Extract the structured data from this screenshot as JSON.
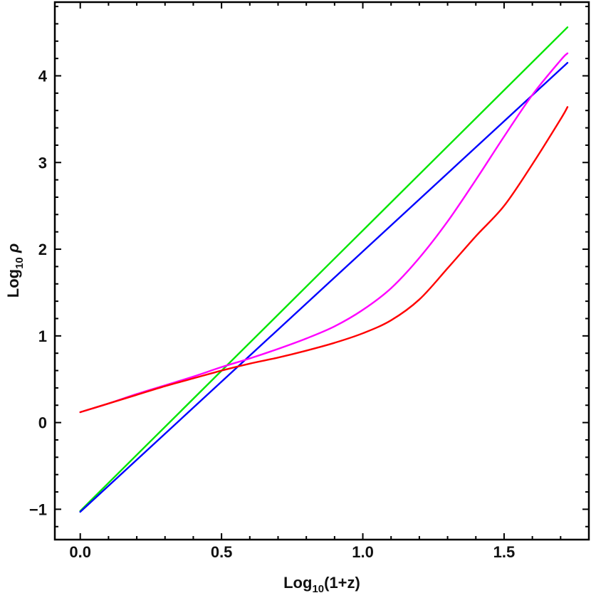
{
  "chart_data": {
    "type": "line",
    "xlabel": {
      "prefix": "Log",
      "sub": "10",
      "suffix": "(1+z)"
    },
    "ylabel": {
      "prefix": "Log",
      "sub": "10",
      "suffix": " ρ"
    },
    "xlim": [
      -0.09,
      1.8
    ],
    "ylim": [
      -1.35,
      4.85
    ],
    "x_ticks": [
      0.0,
      0.5,
      1.0,
      1.5
    ],
    "x_tick_labels": [
      "0.0",
      "0.5",
      "1.0",
      "1.5"
    ],
    "y_ticks": [
      -1,
      0,
      1,
      2,
      3,
      4
    ],
    "y_tick_labels": [
      "-1",
      "0",
      "1",
      "2",
      "3",
      "4"
    ],
    "x_minor_step": 0.1,
    "y_minor_step": 0.2,
    "grid": false,
    "series": [
      {
        "color": "#00e600",
        "x": [
          0.0,
          1.7243
        ],
        "y": [
          -1.02,
          4.56
        ]
      },
      {
        "color": "#0000ff",
        "x": [
          0.0,
          1.7243
        ],
        "y": [
          -1.03,
          4.15
        ]
      },
      {
        "color": "#ff00ff",
        "x": [
          0.0,
          0.1,
          0.2,
          0.3,
          0.4,
          0.5,
          0.6,
          0.7,
          0.8,
          0.9,
          1.0,
          1.1,
          1.2,
          1.3,
          1.4,
          1.5,
          1.6,
          1.7,
          1.7243
        ],
        "y": [
          0.12,
          0.22,
          0.33,
          0.43,
          0.53,
          0.64,
          0.74,
          0.85,
          0.97,
          1.11,
          1.3,
          1.55,
          1.9,
          2.32,
          2.8,
          3.3,
          3.78,
          4.18,
          4.26
        ]
      },
      {
        "color": "#ff0000",
        "x": [
          0.0,
          0.1,
          0.2,
          0.3,
          0.4,
          0.5,
          0.6,
          0.7,
          0.8,
          0.9,
          1.0,
          1.1,
          1.2,
          1.3,
          1.4,
          1.5,
          1.6,
          1.7,
          1.7243
        ],
        "y": [
          0.12,
          0.22,
          0.32,
          0.42,
          0.51,
          0.6,
          0.68,
          0.75,
          0.83,
          0.92,
          1.03,
          1.18,
          1.42,
          1.78,
          2.15,
          2.5,
          2.98,
          3.5,
          3.64
        ]
      }
    ]
  }
}
